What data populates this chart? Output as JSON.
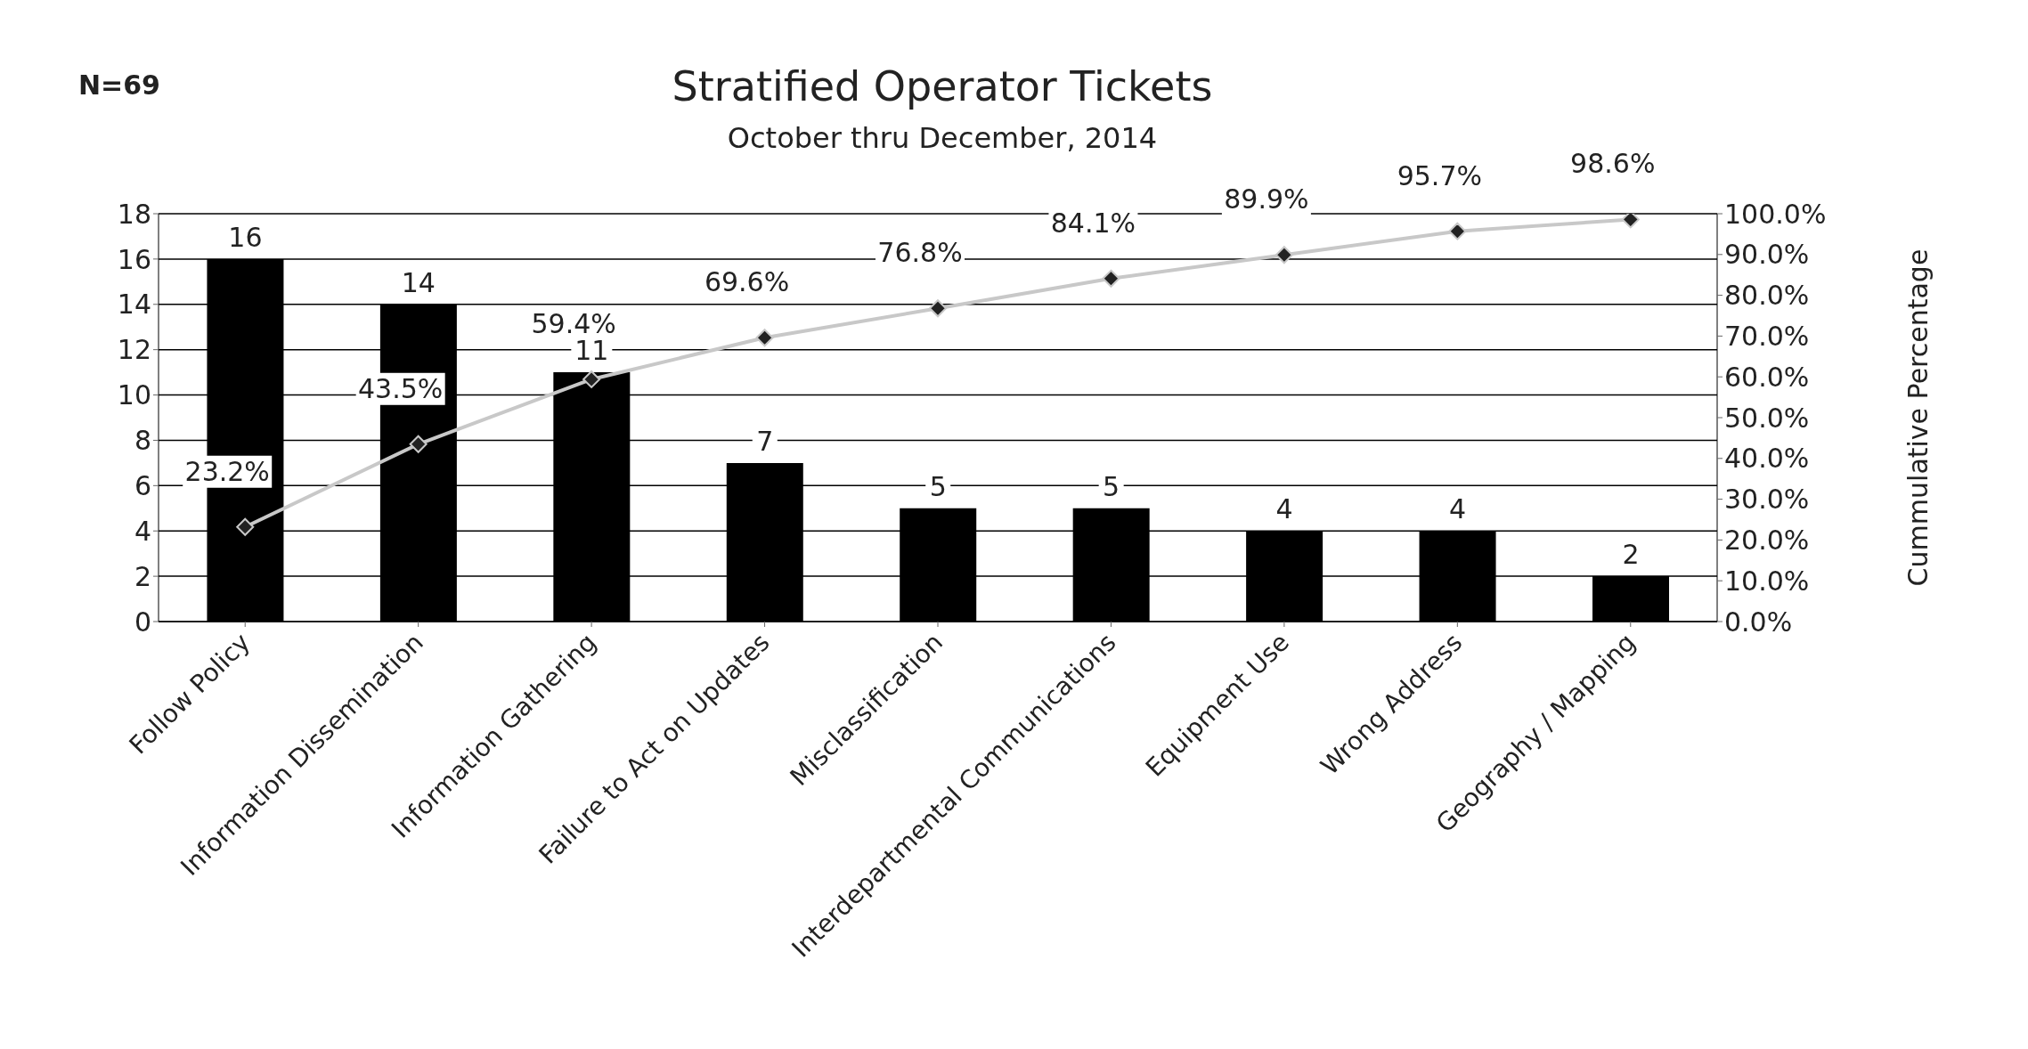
{
  "chart_data": {
    "type": "bar",
    "title": "Stratified Operator Tickets",
    "subtitle": "October thru December, 2014",
    "y2label": "Cummulative Percentage",
    "annotations": [
      "N=69"
    ],
    "categories": [
      "Follow Policy",
      "Information Dissemination",
      "Information Gathering",
      "Failure to Act on Updates",
      "Misclassification",
      "Interdepartmental Communications",
      "Equipment Use",
      "Wrong Address",
      "Geography / Mapping"
    ],
    "series": [
      {
        "color": "#000000",
        "values": [
          16,
          14,
          11,
          7,
          5,
          5,
          4,
          4,
          2
        ],
        "value_labels": [
          "16",
          "14",
          "11",
          "7",
          "5",
          "5",
          "4",
          "4",
          "2"
        ]
      },
      {
        "type": "line",
        "axis": "y2",
        "color": "#c8c8c8",
        "marker": "diamond",
        "line_style": "solid",
        "values": [
          23.2,
          43.5,
          59.4,
          69.6,
          76.8,
          84.1,
          89.9,
          95.7,
          98.6
        ],
        "value_labels": [
          "23.2%",
          "43.5%",
          "59.4%",
          "69.6%",
          "76.8%",
          "84.1%",
          "89.9%",
          "95.7%",
          "98.6%"
        ]
      }
    ],
    "ylim": [
      0,
      18
    ],
    "yticks": [
      0,
      2,
      4,
      6,
      8,
      10,
      12,
      14,
      16,
      18
    ],
    "y2lim": [
      0,
      100
    ],
    "y2ticks": [
      {
        "value": 0,
        "label": "0.0%"
      },
      {
        "value": 10,
        "label": "10.0%"
      },
      {
        "value": 20,
        "label": "20.0%"
      },
      {
        "value": 30,
        "label": "30.0%"
      },
      {
        "value": 40,
        "label": "40.0%"
      },
      {
        "value": 50,
        "label": "50.0%"
      },
      {
        "value": 60,
        "label": "60.0%"
      },
      {
        "value": 70,
        "label": "70.0%"
      },
      {
        "value": 80,
        "label": "80.0%"
      },
      {
        "value": 90,
        "label": "90.0%"
      },
      {
        "value": 100,
        "label": "100.0%"
      }
    ],
    "grid": "y"
  }
}
